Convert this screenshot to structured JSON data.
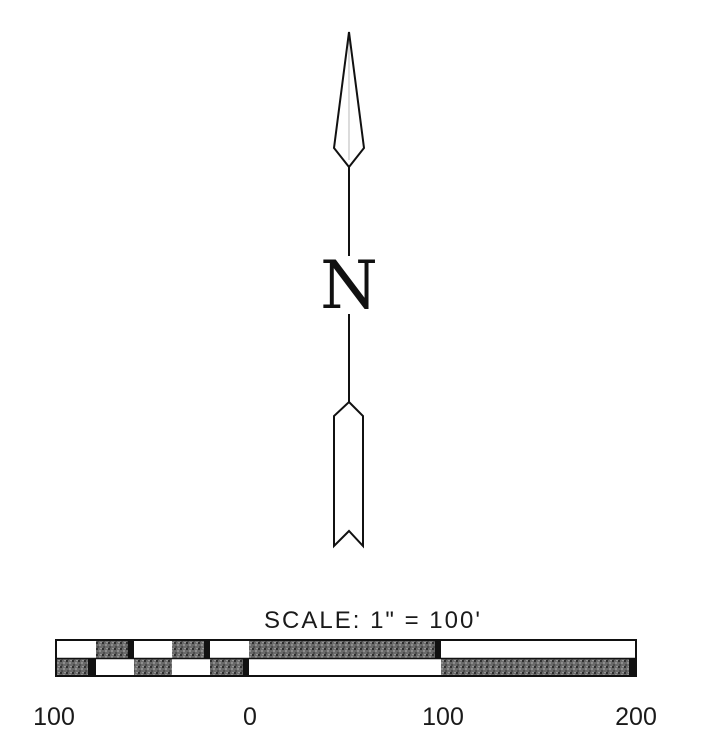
{
  "north_arrow": {
    "letter": "N",
    "icon": "north-arrow-icon"
  },
  "scale_bar": {
    "title": "SCALE: 1\" = 100'",
    "tick_labels": [
      "100",
      "0",
      "100",
      "200"
    ],
    "colors": {
      "dark": "#1a1a1a",
      "fill_pattern": "#555555",
      "light": "#ffffff"
    }
  }
}
